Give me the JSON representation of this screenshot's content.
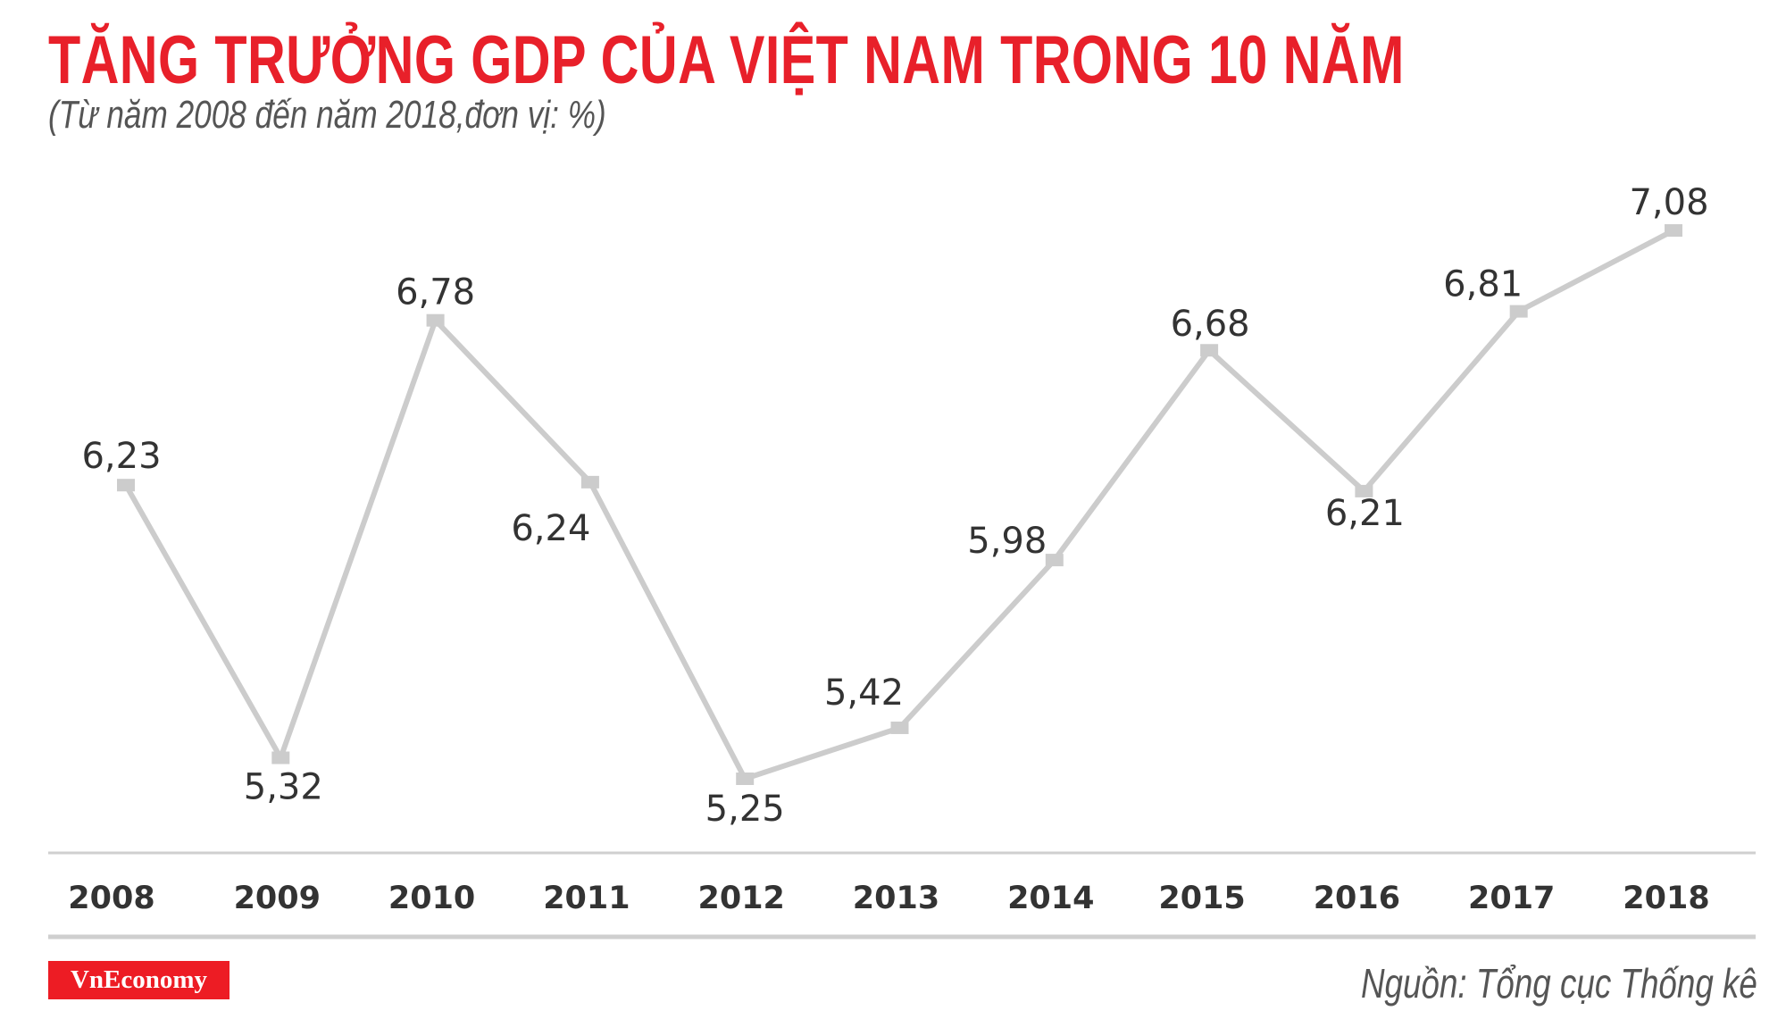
{
  "header": {
    "title": "TĂNG TRƯỞNG GDP CỦA VIỆT NAM TRONG 10 NĂM",
    "subtitle": "(Từ năm 2008 đến năm 2018,đơn vị: %)"
  },
  "chart_data": {
    "type": "line",
    "title": "TĂNG TRƯỞNG GDP CỦA VIỆT NAM TRONG 10 NĂM",
    "subtitle": "(Từ năm 2008 đến năm 2018,đơn vị: %)",
    "categories": [
      "2008",
      "2009",
      "2010",
      "2011",
      "2012",
      "2013",
      "2014",
      "2015",
      "2016",
      "2017",
      "2018"
    ],
    "values": [
      6.23,
      5.32,
      6.78,
      6.24,
      5.25,
      5.42,
      5.98,
      6.68,
      6.21,
      6.81,
      7.08
    ],
    "data_labels": [
      "6,23",
      "5,32",
      "6,78",
      "6,24",
      "5,25",
      "5,42",
      "5,98",
      "6,68",
      "6,21",
      "6,81",
      "7,08"
    ],
    "xlabel": "",
    "ylabel": "",
    "grid": false,
    "line_color": "#cccccc",
    "marker": "square"
  },
  "footer": {
    "logo_text": "VnEconomy",
    "source": "Nguồn: Tổng cục Thống kê"
  },
  "colors": {
    "accent": "#e8202a",
    "line": "#cccccc",
    "text": "#333333"
  }
}
